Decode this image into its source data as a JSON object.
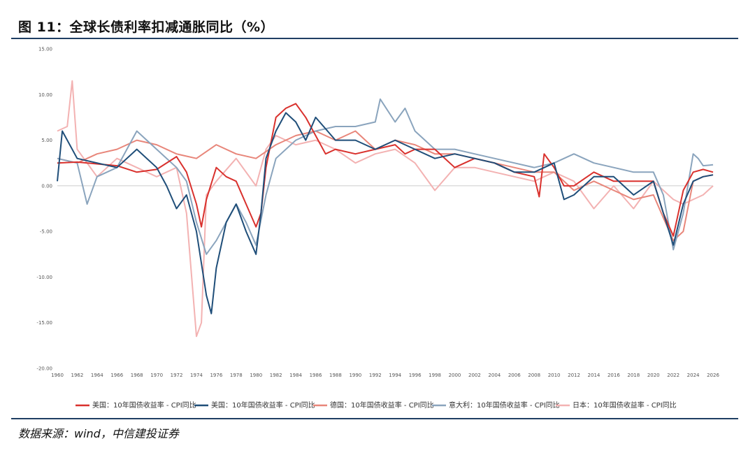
{
  "page": {
    "title": "图 11：全球长债利率扣减通胀同比（%）",
    "source": "数据来源：wind，中信建投证券"
  },
  "colors": {
    "rule": "#1f3f63",
    "zero_line": "#bbbbbb"
  },
  "chart_data": {
    "type": "line",
    "title": "",
    "xlabel": "",
    "ylabel": "",
    "xlim": [
      1960,
      2026
    ],
    "ylim": [
      -20,
      15
    ],
    "x_ticks": [
      "1960",
      "1962",
      "1964",
      "1966",
      "1968",
      "1970",
      "1972",
      "1974",
      "1976",
      "1978",
      "1980",
      "1982",
      "1984",
      "1986",
      "1988",
      "1990",
      "1992",
      "1994",
      "1996",
      "1998",
      "2000",
      "2002",
      "2004",
      "2006",
      "2008",
      "2010",
      "2012",
      "2014",
      "2016",
      "2018",
      "2020",
      "2022",
      "2024",
      "2026"
    ],
    "y_ticks": [
      "15.00",
      "10.00",
      "5.00",
      "0.00",
      "-5.00",
      "-10.00",
      "-15.00",
      "-20.00"
    ],
    "y_tick_values": [
      15,
      10,
      5,
      0,
      -5,
      -10,
      -15,
      -20
    ],
    "grid": false,
    "legend_position": "bottom",
    "series": [
      {
        "name": "美国：10年国债收益率 - CPI同比",
        "color": "#d9312d",
        "x": [
          1960,
          1962,
          1964,
          1966,
          1968,
          1970,
          1972,
          1973,
          1974,
          1974.5,
          1975,
          1976,
          1977,
          1978,
          1979,
          1980,
          1980.5,
          1981,
          1982,
          1983,
          1984,
          1985,
          1986,
          1987,
          1988,
          1990,
          1992,
          1994,
          1995,
          1996,
          1998,
          2000,
          2002,
          2004,
          2006,
          2008,
          2008.5,
          2009,
          2010,
          2011,
          2012,
          2014,
          2016,
          2018,
          2020,
          2021,
          2022,
          2023,
          2024,
          2025,
          2026
        ],
        "y": [
          2.5,
          2.6,
          2.4,
          2.2,
          1.5,
          1.8,
          3.2,
          1.5,
          -2.0,
          -4.5,
          -1.5,
          2.0,
          1.0,
          0.5,
          -2.0,
          -4.5,
          -3.0,
          2.0,
          7.5,
          8.5,
          9.0,
          7.5,
          5.5,
          3.5,
          4.0,
          3.5,
          4.0,
          4.5,
          3.5,
          4.0,
          4.0,
          2.0,
          3.0,
          2.5,
          1.5,
          1.0,
          -1.2,
          3.5,
          2.0,
          0.0,
          0.0,
          1.5,
          0.5,
          0.5,
          0.5,
          -3.0,
          -5.5,
          -0.5,
          1.5,
          1.8,
          1.5
        ]
      },
      {
        "name": "美国：10年国债收益率 - CPI同比",
        "color": "#1f4e79",
        "x": [
          1960,
          1960.5,
          1962,
          1964,
          1966,
          1968,
          1970,
          1971,
          1972,
          1973,
          1974,
          1975,
          1975.5,
          1976,
          1977,
          1978,
          1979,
          1980,
          1980.5,
          1981,
          1982,
          1983,
          1984,
          1985,
          1986,
          1988,
          1990,
          1992,
          1994,
          1996,
          1998,
          2000,
          2002,
          2004,
          2006,
          2008,
          2010,
          2011,
          2012,
          2014,
          2016,
          2018,
          2020,
          2021,
          2022,
          2023,
          2024,
          2025,
          2026
        ],
        "y": [
          0.5,
          6.0,
          3.0,
          2.5,
          2.0,
          4.0,
          2.0,
          0.0,
          -2.5,
          -1.0,
          -5.0,
          -12.0,
          -14.0,
          -9.0,
          -4.0,
          -2.0,
          -5.0,
          -7.5,
          -3.0,
          3.0,
          6.0,
          8.0,
          7.0,
          5.0,
          7.5,
          5.0,
          5.0,
          4.0,
          5.0,
          4.0,
          3.0,
          3.5,
          3.0,
          2.5,
          1.5,
          1.5,
          2.5,
          -1.5,
          -1.0,
          1.0,
          1.0,
          -1.0,
          0.5,
          -3.0,
          -6.5,
          -2.0,
          0.5,
          1.0,
          1.2
        ]
      },
      {
        "name": "德国：10年国债收益率 - CPI同比",
        "color": "#e8867a",
        "x": [
          1960,
          1962,
          1964,
          1966,
          1968,
          1970,
          1972,
          1974,
          1976,
          1978,
          1980,
          1982,
          1984,
          1986,
          1988,
          1990,
          1992,
          1994,
          1996,
          1998,
          2000,
          2002,
          2004,
          2006,
          2008,
          2010,
          2012,
          2014,
          2016,
          2018,
          2020,
          2021,
          2022,
          2023,
          2024,
          2025,
          2026
        ],
        "y": [
          3.0,
          2.5,
          3.5,
          4.0,
          5.0,
          4.5,
          3.5,
          3.0,
          4.5,
          3.5,
          3.0,
          4.5,
          5.5,
          6.0,
          5.0,
          6.0,
          4.0,
          5.0,
          4.5,
          3.5,
          3.5,
          3.0,
          2.5,
          2.0,
          1.5,
          1.5,
          -0.5,
          0.5,
          -0.5,
          -1.5,
          -1.0,
          -3.5,
          -6.0,
          -5.0,
          0.5,
          1.0,
          1.2
        ]
      },
      {
        "name": "意大利：10年国债收益率 - CPI同比",
        "color": "#8aa4bd",
        "x": [
          1960,
          1962,
          1963,
          1964,
          1966,
          1968,
          1970,
          1972,
          1973,
          1974,
          1975,
          1976,
          1977,
          1978,
          1979,
          1980,
          1981,
          1982,
          1984,
          1986,
          1988,
          1990,
          1992,
          1992.5,
          1994,
          1995,
          1996,
          1998,
          2000,
          2002,
          2004,
          2006,
          2008,
          2010,
          2012,
          2014,
          2016,
          2018,
          2020,
          2021,
          2022,
          2023,
          2024,
          2024.5,
          2025,
          2026
        ],
        "y": [
          3.0,
          2.5,
          -2.0,
          1.0,
          2.0,
          6.0,
          4.0,
          2.0,
          0.5,
          -4.0,
          -7.5,
          -6.0,
          -4.0,
          -2.0,
          -4.0,
          -6.5,
          -1.0,
          3.0,
          5.0,
          6.0,
          6.5,
          6.5,
          7.0,
          9.5,
          7.0,
          8.5,
          6.0,
          4.0,
          4.0,
          3.5,
          3.0,
          2.5,
          2.0,
          2.5,
          3.5,
          2.5,
          2.0,
          1.5,
          1.5,
          -1.0,
          -7.0,
          -3.0,
          3.5,
          3.0,
          2.2,
          2.3
        ]
      },
      {
        "name": "日本：10年国债收益率 - CPI同比",
        "color": "#f3b2b2",
        "x": [
          1960,
          1961,
          1961.5,
          1962,
          1964,
          1966,
          1968,
          1970,
          1972,
          1973,
          1974,
          1974.5,
          1975,
          1976,
          1978,
          1980,
          1981,
          1982,
          1984,
          1986,
          1988,
          1990,
          1992,
          1994,
          1996,
          1998,
          2000,
          2002,
          2004,
          2006,
          2008,
          2010,
          2012,
          2014,
          2016,
          2018,
          2020,
          2022,
          2023,
          2024,
          2025,
          2026
        ],
        "y": [
          6.0,
          6.5,
          11.5,
          4.0,
          1.0,
          3.0,
          2.0,
          1.0,
          2.0,
          -3.0,
          -16.5,
          -15.0,
          -1.0,
          0.5,
          3.0,
          0.0,
          4.0,
          5.5,
          4.5,
          5.0,
          4.0,
          2.5,
          3.5,
          4.0,
          2.5,
          -0.5,
          2.0,
          2.0,
          1.5,
          1.0,
          0.5,
          1.5,
          0.5,
          -2.5,
          0.0,
          -2.5,
          0.5,
          -1.5,
          -2.0,
          -1.5,
          -1.0,
          0.0
        ]
      }
    ]
  }
}
